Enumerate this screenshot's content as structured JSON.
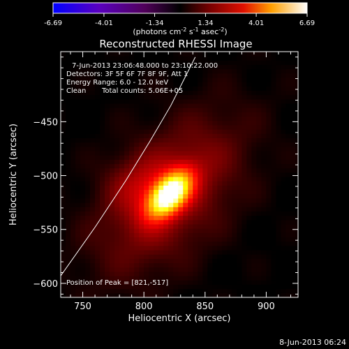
{
  "colorbar": {
    "tick_labels": [
      "-6.69",
      "-4.01",
      "-1.34",
      "1.34",
      "4.01",
      "6.69"
    ],
    "range": [
      -6.69,
      6.69
    ],
    "units_label": {
      "prefix": "(photons cm",
      "exp1": "-2",
      "mid1": " s",
      "exp2": "-1",
      "mid2": " asec",
      "exp3": "-2",
      "suffix": ")"
    }
  },
  "chart_data": {
    "type": "heatmap",
    "title": "Reconstructed RHESSI Image",
    "xlabel": "Heliocentric X (arcsec)",
    "ylabel": "Heliocentric Y (arcsec)",
    "xlim": [
      732,
      926
    ],
    "ylim": [
      -613,
      -385
    ],
    "xticks": [
      750,
      800,
      850,
      900
    ],
    "yticks": [
      -450,
      -500,
      -550,
      -600
    ],
    "colormap": "hot",
    "source": {
      "x": 821,
      "y": -517,
      "peak": 6.69
    },
    "limb_curve": [
      [
        732,
        -593
      ],
      [
        760,
        -548
      ],
      [
        785,
        -505
      ],
      [
        805,
        -468
      ],
      [
        822,
        -435
      ],
      [
        834,
        -408
      ],
      [
        842,
        -390
      ]
    ],
    "annotations": {
      "time": "7-Jun-2013 23:06:48.000 to 23:10:22.000",
      "detectors": "Detectors: 3F 5F 6F 7F 8F 9F, Att 1",
      "energy": "Energy Range: 6.0 - 12.0 keV",
      "method": "Clean",
      "counts": "Total counts: 5.06E+05",
      "peak": "Position of Peak = [821,-517]"
    }
  },
  "footer": {
    "timestamp": "8-Jun-2013 06:24"
  }
}
